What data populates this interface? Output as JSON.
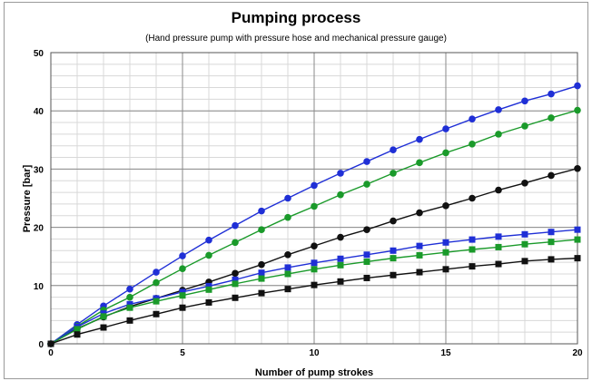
{
  "chart_data": {
    "type": "line",
    "title": "Pumping process",
    "subtitle": "(Hand pressure pump with pressure hose and mechanical pressure gauge)",
    "xlabel": "Number of pump strokes",
    "ylabel": "Pressure [bar]",
    "xlim": [
      0,
      20
    ],
    "ylim": [
      0,
      50
    ],
    "x_ticks": [
      0,
      5,
      10,
      15,
      20
    ],
    "y_ticks": [
      0,
      10,
      20,
      30,
      40,
      50
    ],
    "grid": true,
    "legend": "none",
    "x": [
      0,
      1,
      2,
      3,
      4,
      5,
      6,
      7,
      8,
      9,
      10,
      11,
      12,
      13,
      14,
      15,
      16,
      17,
      18,
      19,
      20
    ],
    "series": [
      {
        "color": "#1f2fd6",
        "marker": "circle",
        "values": [
          0,
          3.3,
          6.5,
          9.4,
          12.3,
          15.1,
          17.8,
          20.3,
          22.8,
          25.0,
          27.2,
          29.3,
          31.3,
          33.3,
          35.1,
          36.9,
          38.6,
          40.2,
          41.7,
          42.9,
          44.3
        ]
      },
      {
        "color": "#1a9a2a",
        "marker": "circle",
        "values": [
          0,
          3.0,
          5.8,
          8.0,
          10.5,
          12.9,
          15.2,
          17.4,
          19.6,
          21.7,
          23.6,
          25.6,
          27.4,
          29.3,
          31.1,
          32.8,
          34.3,
          36.0,
          37.4,
          38.8,
          40.1
        ]
      },
      {
        "color": "#111111",
        "marker": "circle",
        "values": [
          0,
          2.6,
          4.6,
          6.4,
          7.8,
          9.2,
          10.6,
          12.1,
          13.6,
          15.3,
          16.8,
          18.3,
          19.6,
          21.1,
          22.5,
          23.7,
          25.0,
          26.4,
          27.6,
          28.9,
          30.1
        ]
      },
      {
        "color": "#1f2fd6",
        "marker": "square",
        "values": [
          0,
          2.9,
          5.2,
          6.8,
          7.8,
          8.9,
          9.9,
          11.0,
          12.2,
          13.1,
          13.9,
          14.6,
          15.3,
          16.0,
          16.8,
          17.4,
          17.9,
          18.4,
          18.8,
          19.2,
          19.6
        ]
      },
      {
        "color": "#1a9a2a",
        "marker": "square",
        "values": [
          0,
          2.5,
          4.7,
          6.2,
          7.3,
          8.3,
          9.3,
          10.3,
          11.2,
          12.0,
          12.8,
          13.5,
          14.1,
          14.7,
          15.2,
          15.7,
          16.2,
          16.6,
          17.1,
          17.5,
          17.9
        ]
      },
      {
        "color": "#111111",
        "marker": "square",
        "values": [
          0,
          1.6,
          2.8,
          4.0,
          5.1,
          6.2,
          7.1,
          7.9,
          8.7,
          9.4,
          10.1,
          10.7,
          11.3,
          11.8,
          12.3,
          12.8,
          13.3,
          13.7,
          14.2,
          14.5,
          14.7
        ]
      }
    ]
  }
}
